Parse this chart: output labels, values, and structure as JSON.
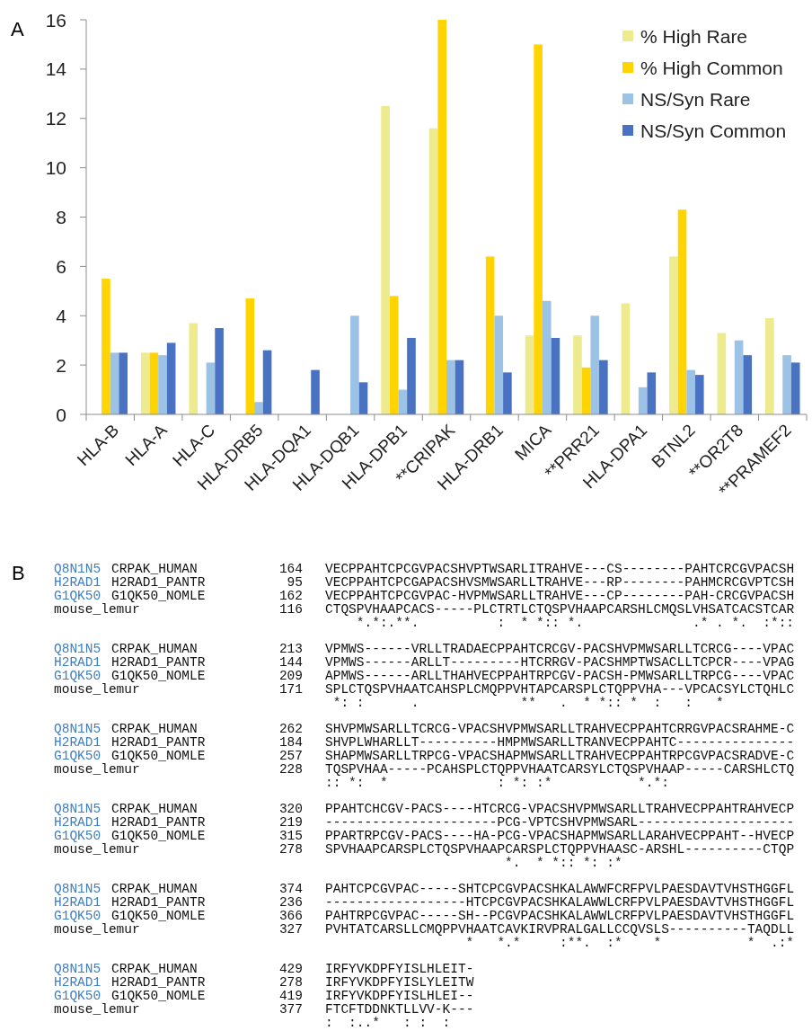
{
  "chart_data": [
    {
      "type": "bar",
      "title": "A",
      "categories": [
        "HLA-B",
        "HLA-A",
        "HLA-C",
        "HLA-DRB5",
        "HLA-DQA1",
        "HLA-DQB1",
        "HLA-DPB1",
        "**CRIPAK",
        "HLA-DRB1",
        "MICA",
        "**PRR21",
        "HLA-DPA1",
        "BTNL2",
        "**OR2T8",
        "**PRAMEF2"
      ],
      "series": [
        {
          "name": "% High Rare",
          "color": "#eeea8e",
          "values": [
            null,
            2.5,
            3.7,
            null,
            null,
            null,
            12.5,
            11.6,
            null,
            3.2,
            3.2,
            4.5,
            6.4,
            3.3,
            3.9
          ]
        },
        {
          "name": "% High Common",
          "color": "#ffd400",
          "values": [
            5.5,
            2.5,
            null,
            4.7,
            null,
            null,
            4.8,
            16,
            6.4,
            15,
            1.9,
            null,
            8.3,
            null,
            null
          ]
        },
        {
          "name": "NS/Syn Rare",
          "color": "#9cc2e5",
          "values": [
            2.5,
            2.4,
            2.1,
            0.5,
            null,
            4.0,
            1.0,
            2.2,
            4.0,
            4.6,
            4.0,
            1.1,
            1.8,
            3.0,
            2.4
          ]
        },
        {
          "name": "NS/Syn Common",
          "color": "#4a72c2",
          "values": [
            2.5,
            2.9,
            3.5,
            2.6,
            1.8,
            1.3,
            3.1,
            2.2,
            1.7,
            3.1,
            2.2,
            1.7,
            1.6,
            2.4,
            2.1
          ]
        }
      ],
      "ylim": [
        0,
        16
      ],
      "yticks": [
        0,
        2,
        4,
        6,
        8,
        10,
        12,
        14,
        16
      ],
      "legend": "top right"
    },
    {
      "type": "other",
      "title": "B",
      "annotations": [
        "Q8N1N5 CRPAK_HUMAN 164 VECPPAHTCPCGVPACSHVPTWSARLITRAHVE---CS--------PAHTCRCGVPACSH",
        "H2RAD1 H2RAD1_PANTR 95 VECPPAHTCPCGAPACSHVSMWSARLLTRAHVE---RP--------PAHMCRCGVPTCSH",
        "G1QK50 G1QK50_NOMLE 162 VECPPAHTCPCGVPAC-HVPMWSARLLTRAHVE---CP--------PAH-CRCGVPACSH",
        "mouse_lemur 116 CTQSPVHAAPCACS-----PLCTRTLCTQSPVHAAPCARSHLCMQSLVHSATCACSTCAR",
        "    *.*:.**.          :  * *:: *.              .* . *.  :*::",
        "Q8N1N5 CRPAK_HUMAN 213 VPMWS------VRLLTRADAECPPAHTCRCGV-PACSHVPMWSARLLTCRCG----VPAC",
        "H2RAD1 H2RAD1_PANTR 144 VPMWS------ARLLT---------HTCRRGV-PACSHMPTWSACLLTCPCR----VPAG",
        "G1QK50 G1QK50_NOMLE 209 APMWS------ARLLTHAHVECPPAHTRPCGV-PACSH-PMWSARLLTRPCG----VPAC",
        "mouse_lemur 171 SPLCTQSPVHAATCAHSPLCMQPPVHTAPCARSPLCTQPPVHA---VPCACSYLCTQHLC",
        " *: :      .             **   .  * *:: *  :   :   *",
        "Q8N1N5 CRPAK_HUMAN 262 SHVPMWSARLLTCRCG-VPACSHVPMWSARLLTRAHVECPPAHTCRRGVPACSRAHME-C",
        "H2RAD1 H2RAD1_PANTR 184 SHVPLWHARLLT----------HMPMWSARLLTRANVECPPAHTC---------------",
        "G1QK50 G1QK50_NOMLE 257 SHAPMWSARLLTRPCG-VPACSHAPMWSARLLTRAHVECPPAHTRPCGVPACSRADVE-C",
        "mouse_lemur 228 TQSPVHAA-----PCAHSPLCTQPPVHAATCARSYLCTQSPVHAAP-----CARSHLCTQ",
        ":: *:  *              : *: :*           *.*:",
        "Q8N1N5 CRPAK_HUMAN 320 PPAHTCHCGV-PACS----HTCRCG-VPACSHVPMWSARLLTRAHVECPPAHTRAHVECP",
        "H2RAD1 H2RAD1_PANTR 219 ----------------------PCG-VPTCSHVPMWSARL--------------------",
        "G1QK50 G1QK50_NOMLE 315 PPARTRPCGV-PACS----HA-PCG-VPACSHAPMWSARLLARAHVECPPAHT--HVECP",
        "mouse_lemur 278 SPVHAAPCARSPLCTQSPVHAAPCARSPLCTQPPVHAASC-ARSHL----------CTQP",
        "                       *.  * *:: *: :*",
        "Q8N1N5 CRPAK_HUMAN 374 PAHTCPCGVPAC-----SHTCPCGVPACSHKALAWWFCRFPVLPAESDAVTVHSTHGGFL",
        "H2RAD1 H2RAD1_PANTR 236 ------------------HTCPCGVPACSHKALAWWLCRFPVLPAESDAVTVHSTHGGFL",
        "G1QK50 G1QK50_NOMLE 366 PAHTRPCGVPAC-----SH--PCGVPACSHKALAWWLCRFPVLPAESDAVTVHSTHGGFL",
        "mouse_lemur 327 PVHTATCARSLLCMQPPVHAATCAVKIRVPRALGALLCCQVSLS----------TAQDLL",
        "                  *   *.*     :**.  :*    *           *  .:*",
        "Q8N1N5 CRPAK_HUMAN 429 IRFYVKDPFYISLHLEIT-",
        "H2RAD1 H2RAD1_PANTR 278 IRFYVKDPFYISLYLEITW",
        "G1QK50 G1QK50_NOMLE 419 IRFYVKDPFYISLHLEI--",
        "mouse_lemur 377 FTCFTDDNKTLLVV-K---",
        ":  :..*   : :  :"
      ]
    }
  ]
}
